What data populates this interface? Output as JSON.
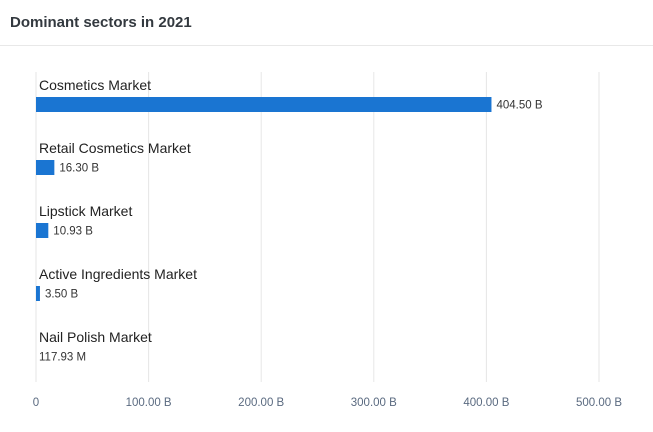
{
  "card": {
    "title": "Dominant sectors in 2021"
  },
  "chart_data": {
    "type": "bar",
    "orientation": "horizontal",
    "title": "Dominant sectors in 2021",
    "categories": [
      "Cosmetics Market",
      "Retail Cosmetics Market",
      "Lipstick Market",
      "Active Ingredients Market",
      "Nail Polish Market"
    ],
    "values": [
      404.5,
      16.3,
      10.93,
      3.5,
      0.11793
    ],
    "value_units": "B",
    "value_labels": [
      "404.50 B",
      "16.30 B",
      "10.93 B",
      "3.50 B",
      "117.93 M"
    ],
    "xlim": [
      0,
      500
    ],
    "x_ticks": [
      0,
      100,
      200,
      300,
      400,
      500
    ],
    "x_tick_labels": [
      "0",
      "100.00 B",
      "200.00 B",
      "300.00 B",
      "400.00 B",
      "500.00 B"
    ],
    "grid": true,
    "legend": "none",
    "bar_color": "#1a75d2"
  }
}
